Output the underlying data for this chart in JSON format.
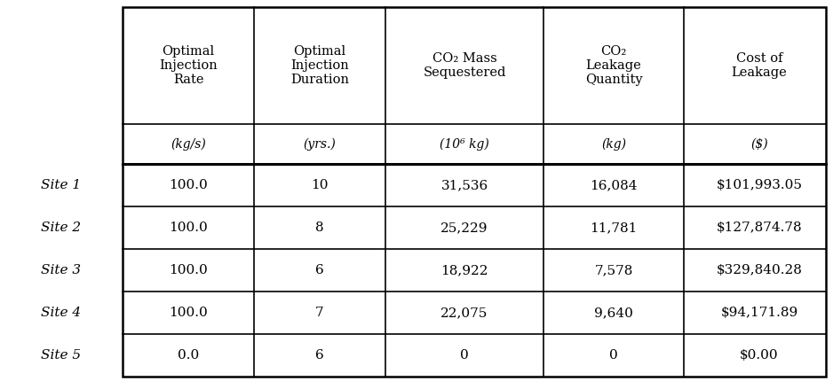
{
  "col_headers": [
    "Optimal\nInjection\nRate",
    "Optimal\nInjection\nDuration",
    "CO₂ Mass\nSequestered",
    "CO₂\nLeakage\nQuantity",
    "Cost of\nLeakage"
  ],
  "col_units": [
    "(kg/s)",
    "(yrs.)",
    "(10⁶ kg)",
    "(kg)",
    "($)"
  ],
  "row_labels": [
    "Site 1",
    "Site 2",
    "Site 3",
    "Site 4",
    "Site 5"
  ],
  "data": [
    [
      "100.0",
      "10",
      "31,536",
      "16,084",
      "$101,993.05"
    ],
    [
      "100.0",
      "8",
      "25,229",
      "11,781",
      "$127,874.78"
    ],
    [
      "100.0",
      "6",
      "18,922",
      "7,578",
      "$329,840.28"
    ],
    [
      "100.0",
      "7",
      "22,075",
      "9,640",
      "$94,171.89"
    ],
    [
      "0.0",
      "6",
      "0",
      "0",
      "$0.00"
    ]
  ],
  "bg_color": "#ffffff",
  "text_color": "#000000",
  "figsize": [
    9.38,
    4.3
  ],
  "dpi": 100
}
